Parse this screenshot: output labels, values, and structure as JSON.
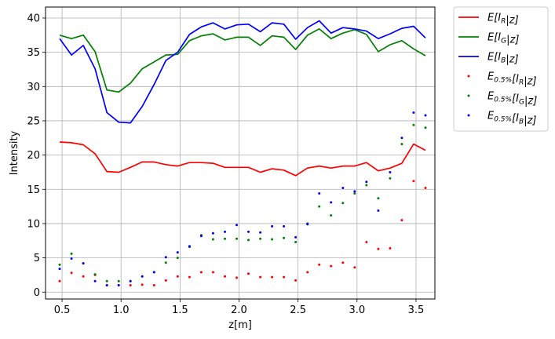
{
  "chart_data": {
    "type": "line",
    "title": "",
    "xlabel": "z[m]",
    "ylabel": "Intensity",
    "xlim": [
      0.36,
      3.66
    ],
    "ylim": [
      -1,
      41.6
    ],
    "grid": true,
    "legend_position": "outside-top-right",
    "x_ticks": [
      {
        "value": 0.5,
        "label": "0.5"
      },
      {
        "value": 1.0,
        "label": "1.0"
      },
      {
        "value": 1.5,
        "label": "1.5"
      },
      {
        "value": 2.0,
        "label": "2.0"
      },
      {
        "value": 2.5,
        "label": "2.5"
      },
      {
        "value": 3.0,
        "label": "3.0"
      },
      {
        "value": 3.5,
        "label": "3.5"
      }
    ],
    "y_ticks": [
      {
        "value": 0,
        "label": "0"
      },
      {
        "value": 5,
        "label": "5"
      },
      {
        "value": 10,
        "label": "10"
      },
      {
        "value": 15,
        "label": "15"
      },
      {
        "value": 20,
        "label": "20"
      },
      {
        "value": 25,
        "label": "25"
      },
      {
        "value": 30,
        "label": "30"
      },
      {
        "value": 35,
        "label": "35"
      },
      {
        "value": 40,
        "label": "40"
      }
    ],
    "x": [
      0.48,
      0.58,
      0.68,
      0.78,
      0.88,
      0.98,
      1.08,
      1.18,
      1.28,
      1.38,
      1.48,
      1.58,
      1.68,
      1.78,
      1.88,
      1.98,
      2.08,
      2.18,
      2.28,
      2.38,
      2.48,
      2.58,
      2.68,
      2.78,
      2.88,
      2.98,
      3.08,
      3.18,
      3.28,
      3.38,
      3.48,
      3.58
    ],
    "series": [
      {
        "name": "E[I_R|z]",
        "kind": "line",
        "color": "#ff0000",
        "values": [
          21.9,
          21.8,
          21.5,
          20.2,
          17.6,
          17.5,
          18.2,
          19.0,
          19.0,
          18.6,
          18.4,
          18.9,
          18.9,
          18.8,
          18.2,
          18.2,
          18.2,
          17.5,
          18.0,
          17.8,
          17.0,
          18.1,
          18.4,
          18.1,
          18.4,
          18.4,
          18.9,
          17.7,
          18.1,
          18.8,
          21.6,
          20.7
        ]
      },
      {
        "name": "E[I_G|z]",
        "kind": "line",
        "color": "#008000",
        "values": [
          37.5,
          37.0,
          37.5,
          35.1,
          29.5,
          29.2,
          30.5,
          32.6,
          33.6,
          34.6,
          34.7,
          36.7,
          37.4,
          37.7,
          36.8,
          37.2,
          37.2,
          36.0,
          37.4,
          37.2,
          35.4,
          37.5,
          38.4,
          37.0,
          37.8,
          38.3,
          37.6,
          35.1,
          36.1,
          36.7,
          35.5,
          34.5
        ]
      },
      {
        "name": "E[I_B|z]",
        "kind": "line",
        "color": "#0000ff",
        "values": [
          37.0,
          34.6,
          36.0,
          32.6,
          26.2,
          24.8,
          24.7,
          27.1,
          30.3,
          33.8,
          35.0,
          37.6,
          38.7,
          39.3,
          38.4,
          39.0,
          39.1,
          38.0,
          39.3,
          39.1,
          36.9,
          38.6,
          39.6,
          37.8,
          38.6,
          38.4,
          38.1,
          37.0,
          37.7,
          38.5,
          38.8,
          37.1
        ]
      },
      {
        "name": "E_0.5%[I_R|z]",
        "kind": "points",
        "color": "#ff0000",
        "values": [
          1.6,
          2.8,
          2.3,
          2.5,
          1.0,
          1.0,
          1.0,
          1.1,
          1.0,
          1.7,
          2.3,
          2.2,
          2.9,
          2.9,
          2.3,
          2.1,
          2.7,
          2.2,
          2.2,
          2.2,
          1.7,
          2.9,
          4.0,
          3.8,
          4.3,
          3.6,
          7.3,
          6.3,
          6.4,
          10.5,
          16.2,
          15.2
        ]
      },
      {
        "name": "E_0.5%[I_G|z]",
        "kind": "points",
        "color": "#008000",
        "values": [
          4.0,
          5.6,
          4.2,
          2.6,
          1.6,
          1.6,
          1.6,
          2.3,
          2.9,
          4.3,
          5.0,
          6.6,
          8.3,
          7.7,
          7.8,
          7.8,
          7.6,
          7.8,
          7.7,
          7.9,
          7.3,
          10.0,
          12.5,
          11.2,
          13.0,
          14.4,
          15.6,
          13.7,
          16.6,
          21.6,
          24.4,
          24.0
        ]
      },
      {
        "name": "E_0.5%[I_B|z]",
        "kind": "points",
        "color": "#0000ff",
        "values": [
          3.4,
          4.9,
          4.2,
          1.6,
          1.0,
          1.0,
          1.6,
          2.3,
          2.9,
          5.1,
          5.8,
          6.7,
          8.2,
          8.6,
          8.8,
          9.8,
          8.8,
          8.7,
          9.6,
          9.6,
          8.0,
          9.9,
          14.4,
          13.1,
          15.2,
          14.7,
          16.1,
          11.9,
          17.5,
          22.5,
          26.2,
          25.8
        ]
      }
    ]
  },
  "legend": {
    "entries": [
      {
        "base": "E",
        "sub": "",
        "arg": "[I",
        "argsub": "R",
        "tail": "|z]",
        "kind": "line",
        "color": "#ff0000"
      },
      {
        "base": "E",
        "sub": "",
        "arg": "[I",
        "argsub": "G",
        "tail": "|z]",
        "kind": "line",
        "color": "#008000"
      },
      {
        "base": "E",
        "sub": "",
        "arg": "[I",
        "argsub": "B",
        "tail": "|z]",
        "kind": "line",
        "color": "#0000ff"
      },
      {
        "base": "E",
        "sub": "0.5%",
        "arg": "[I",
        "argsub": "R",
        "tail": "|z]",
        "kind": "points",
        "color": "#ff0000"
      },
      {
        "base": "E",
        "sub": "0.5%",
        "arg": "[I",
        "argsub": "G",
        "tail": "|z]",
        "kind": "points",
        "color": "#008000"
      },
      {
        "base": "E",
        "sub": "0.5%",
        "arg": "[I",
        "argsub": "B",
        "tail": "|z]",
        "kind": "points",
        "color": "#0000ff"
      }
    ]
  }
}
